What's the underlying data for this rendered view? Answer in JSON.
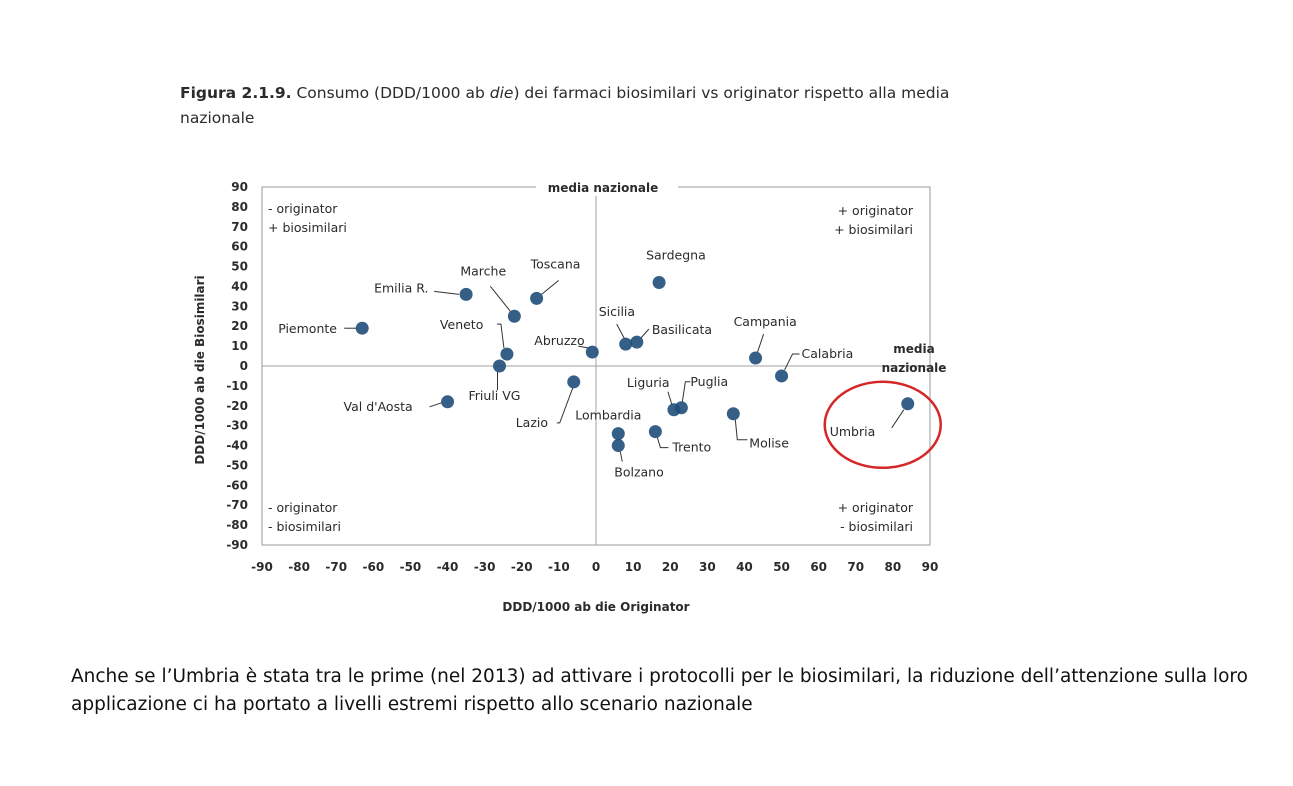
{
  "figure": {
    "title_bold": "Figura 2.1.9.",
    "title_pre": " Consumo (DDD/1000 ab ",
    "title_italic": "die",
    "title_post": ") dei farmaci biosimilari vs originator rispetto alla media nazionale"
  },
  "chart_data": {
    "type": "scatter",
    "xlabel": "DDD/1000 ab die Originator",
    "ylabel": "DDD/1000 ab die Biosimilari",
    "xlim": [
      -90,
      90
    ],
    "ylim": [
      -90,
      90
    ],
    "x_ticks": [
      "-90",
      "-80",
      "-70",
      "-60",
      "-50",
      "-40",
      "-30",
      "-20",
      "-10",
      "0",
      "10",
      "20",
      "30",
      "40",
      "50",
      "60",
      "70",
      "80",
      "90"
    ],
    "y_ticks": [
      "90",
      "80",
      "70",
      "60",
      "50",
      "40",
      "30",
      "20",
      "10",
      "0",
      "-10",
      "-20",
      "-30",
      "-40",
      "-50",
      "-60",
      "-70",
      "-80",
      "-90"
    ],
    "reference_lines": {
      "vertical_label": "media nazionale",
      "horizontal_label_line1": "media",
      "horizontal_label_line2": "nazionale"
    },
    "quadrants": {
      "top_left": [
        "- originator",
        "+ biosimilari"
      ],
      "top_right": [
        "+ originator",
        "+ biosimilari"
      ],
      "bottom_left": [
        "- originator",
        "- biosimilari"
      ],
      "bottom_right": [
        "+ originator",
        "- biosimilari"
      ]
    },
    "point_color": "#1f4e79",
    "highlight_color": "#d62728",
    "highlighted_point": "Umbria",
    "points": [
      {
        "name": "Piemonte",
        "x": -63,
        "y": 19
      },
      {
        "name": "Emilia R.",
        "x": -35,
        "y": 36
      },
      {
        "name": "Marche",
        "x": -22,
        "y": 25
      },
      {
        "name": "Toscana",
        "x": -16,
        "y": 34
      },
      {
        "name": "Veneto",
        "x": -24,
        "y": 6
      },
      {
        "name": "Friuli VG",
        "x": -26,
        "y": 0
      },
      {
        "name": "Val d'Aosta",
        "x": -40,
        "y": -18
      },
      {
        "name": "Lazio",
        "x": -6,
        "y": -8
      },
      {
        "name": "Abruzzo",
        "x": -1,
        "y": 7
      },
      {
        "name": "Sicilia",
        "x": 8,
        "y": 11
      },
      {
        "name": "Basilicata",
        "x": 11,
        "y": 12
      },
      {
        "name": "Sardegna",
        "x": 17,
        "y": 42
      },
      {
        "name": "Campania",
        "x": 43,
        "y": 4
      },
      {
        "name": "Calabria",
        "x": 50,
        "y": -5
      },
      {
        "name": "Liguria",
        "x": 21,
        "y": -22
      },
      {
        "name": "Puglia",
        "x": 23,
        "y": -21
      },
      {
        "name": "Molise",
        "x": 37,
        "y": -24
      },
      {
        "name": "Lombardia",
        "x": 6,
        "y": -34
      },
      {
        "name": "Trento",
        "x": 16,
        "y": -33
      },
      {
        "name": "Bolzano",
        "x": 6,
        "y": -40
      },
      {
        "name": "Umbria",
        "x": 84,
        "y": -19
      }
    ]
  },
  "caption": "Anche se l’Umbria è stata tra le prime (nel 2013) ad attivare i protocolli per le biosimilari, la riduzione dell’attenzione sulla loro applicazione ci ha portato a livelli estremi rispetto allo scenario nazionale"
}
